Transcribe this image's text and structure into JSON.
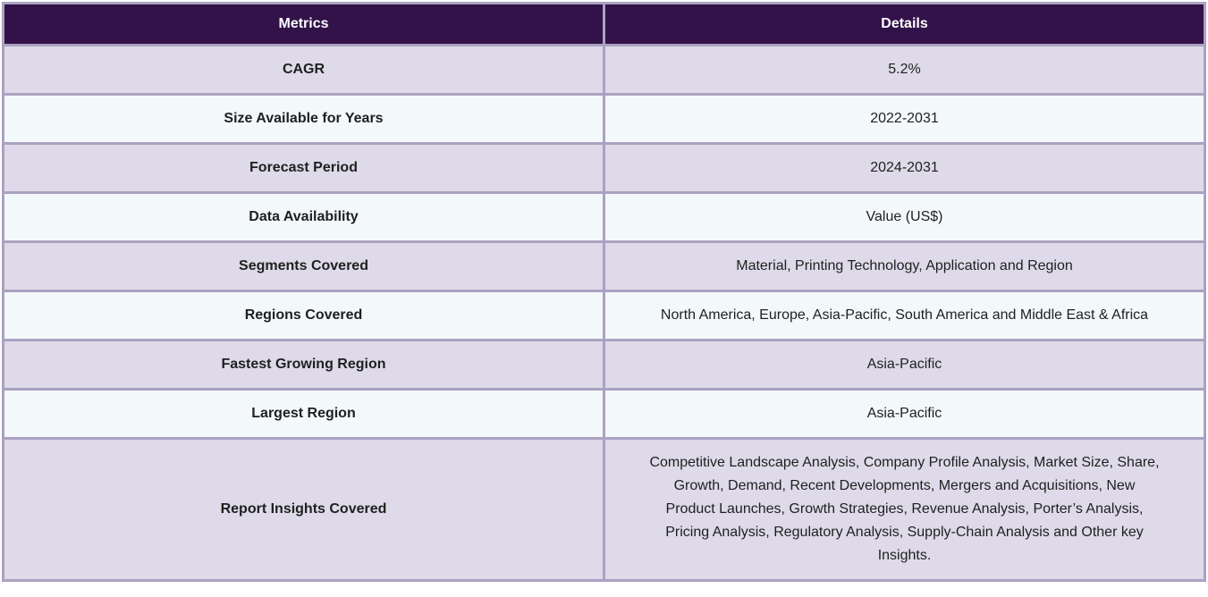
{
  "table": {
    "headers": [
      "Metrics",
      "Details"
    ],
    "rows": [
      {
        "metric": "CAGR",
        "detail": "5.2%"
      },
      {
        "metric": "Size Available for Years",
        "detail": "2022-2031"
      },
      {
        "metric": "Forecast Period",
        "detail": "2024-2031"
      },
      {
        "metric": "Data Availability",
        "detail": "Value (US$)"
      },
      {
        "metric": "Segments Covered",
        "detail": "Material, Printing Technology, Application and Region"
      },
      {
        "metric": "Regions Covered",
        "detail": "North America, Europe, Asia-Pacific, South America and Middle East & Africa"
      },
      {
        "metric": "Fastest Growing Region",
        "detail": "Asia-Pacific"
      },
      {
        "metric": "Largest Region",
        "detail": "Asia-Pacific"
      },
      {
        "metric": "Report Insights Covered",
        "detail": "Competitive Landscape Analysis, Company Profile Analysis, Market Size, Share, Growth, Demand, Recent Developments, Mergers and Acquisitions, New Product Launches, Growth Strategies, Revenue Analysis, Porter’s Analysis, Pricing Analysis, Regulatory Analysis, Supply-Chain Analysis and Other key Insights."
      }
    ]
  },
  "colors": {
    "header_bg": "#331249",
    "header_text": "#ffffff",
    "row_odd_bg": "#dedae9",
    "row_even_bg": "#f3f8fb",
    "border": "#aba2c2",
    "body_text": "#1f1f1f"
  },
  "chart_data": {
    "type": "table",
    "columns": [
      "Metrics",
      "Details"
    ],
    "rows": [
      [
        "CAGR",
        "5.2%"
      ],
      [
        "Size Available for Years",
        "2022-2031"
      ],
      [
        "Forecast Period",
        "2024-2031"
      ],
      [
        "Data Availability",
        "Value (US$)"
      ],
      [
        "Segments Covered",
        "Material, Printing Technology, Application and Region"
      ],
      [
        "Regions Covered",
        "North America, Europe, Asia-Pacific, South America and Middle East & Africa"
      ],
      [
        "Fastest Growing Region",
        "Asia-Pacific"
      ],
      [
        "Largest Region",
        "Asia-Pacific"
      ],
      [
        "Report Insights Covered",
        "Competitive Landscape Analysis, Company Profile Analysis, Market Size, Share, Growth, Demand, Recent Developments, Mergers and Acquisitions, New Product Launches, Growth Strategies, Revenue Analysis, Porter’s Analysis, Pricing Analysis, Regulatory Analysis, Supply-Chain Analysis and Other key Insights."
      ]
    ],
    "title": "",
    "legend": false,
    "grid": true
  }
}
